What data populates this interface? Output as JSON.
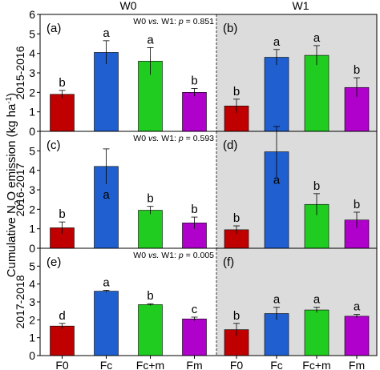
{
  "figure": {
    "column_titles": [
      "W0",
      "W1"
    ],
    "y_axis_label": {
      "pre": "Cumulative N",
      "sub1": "2",
      "mid": "O emission (kg ha",
      "sup": "-1",
      "post": ")"
    }
  },
  "colors": {
    "F0": "#c00000",
    "Fc": "#1f5fd0",
    "Fc+m": "#1fcc1f",
    "Fm": "#b000cc",
    "w1_background": "#dcdcdc"
  },
  "chart_data": [
    {
      "type": "bar",
      "row_label": "2015-2016",
      "panels": [
        {
          "letter": "(a)",
          "note": "W0 vs. W1: p = 0.851",
          "ylim": [
            0,
            6
          ],
          "yticks": [
            "0",
            "1",
            "2",
            "3",
            "4",
            "5",
            "6"
          ],
          "categories": [
            "F0",
            "Fc",
            "Fc+m",
            "Fm"
          ],
          "values": [
            1.9,
            4.05,
            3.6,
            2.0
          ],
          "errors": [
            0.2,
            0.6,
            0.7,
            0.2
          ],
          "letters": [
            "b",
            "a",
            "a",
            "b"
          ]
        },
        {
          "letter": "(b)",
          "note": "",
          "ylim": [
            0,
            6
          ],
          "categories": [
            "F0",
            "Fc",
            "Fc+m",
            "Fm"
          ],
          "values": [
            1.3,
            3.8,
            3.9,
            2.25
          ],
          "errors": [
            0.35,
            0.4,
            0.5,
            0.5
          ],
          "letters": [
            "b",
            "a",
            "a",
            "b"
          ]
        }
      ]
    },
    {
      "type": "bar",
      "row_label": "2016-2017",
      "panels": [
        {
          "letter": "(c)",
          "note": "W0 vs. W1: p = 0.593",
          "ylim": [
            0,
            6
          ],
          "yticks": [
            "0",
            "1",
            "2",
            "3",
            "4",
            "5",
            "6"
          ],
          "categories": [
            "F0",
            "Fc",
            "Fc+m",
            "Fm"
          ],
          "values": [
            1.05,
            4.2,
            1.95,
            1.3
          ],
          "errors": [
            0.3,
            0.9,
            0.2,
            0.3
          ],
          "letters": [
            "b",
            "a",
            "b",
            "b"
          ]
        },
        {
          "letter": "(d)",
          "note": "",
          "ylim": [
            0,
            6
          ],
          "categories": [
            "F0",
            "Fc",
            "Fc+m",
            "Fm"
          ],
          "values": [
            0.95,
            4.95,
            2.25,
            1.45
          ],
          "errors": [
            0.2,
            1.3,
            0.55,
            0.4
          ],
          "letters": [
            "b",
            "a",
            "b",
            "b"
          ]
        }
      ]
    },
    {
      "type": "bar",
      "row_label": "2017-2018",
      "panels": [
        {
          "letter": "(e)",
          "note": "W0 vs. W1: p = 0.005",
          "ylim": [
            0,
            6
          ],
          "yticks": [
            "0",
            "1",
            "2",
            "3",
            "4",
            "5",
            "6"
          ],
          "xticks": [
            "F0",
            "Fc",
            "Fc+m",
            "Fm"
          ],
          "categories": [
            "F0",
            "Fc",
            "Fc+m",
            "Fm"
          ],
          "values": [
            1.65,
            3.6,
            2.85,
            2.05
          ],
          "errors": [
            0.15,
            0.05,
            0.05,
            0.1
          ],
          "letters": [
            "d",
            "a",
            "b",
            "c"
          ]
        },
        {
          "letter": "(f)",
          "note": "",
          "ylim": [
            0,
            6
          ],
          "xticks": [
            "F0",
            "Fc",
            "Fc+m",
            "Fm"
          ],
          "categories": [
            "F0",
            "Fc",
            "Fc+m",
            "Fm"
          ],
          "values": [
            1.45,
            2.35,
            2.55,
            2.2
          ],
          "errors": [
            0.35,
            0.35,
            0.15,
            0.1
          ],
          "letters": [
            "b",
            "a",
            "a",
            "a"
          ]
        }
      ]
    }
  ]
}
